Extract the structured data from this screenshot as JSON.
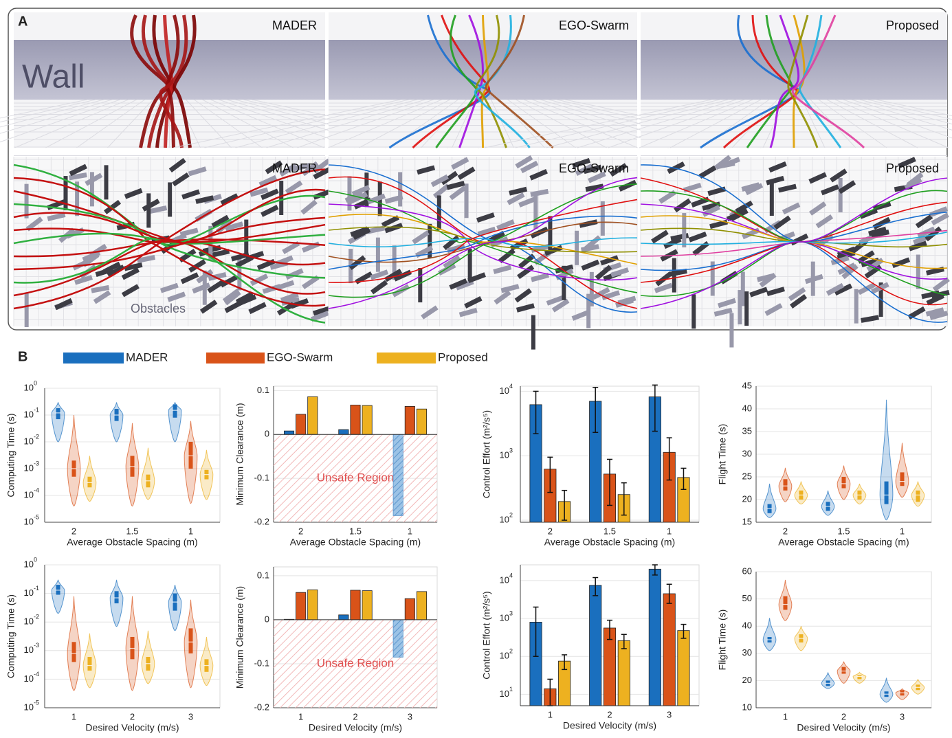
{
  "panel_a": {
    "label": "A",
    "top": [
      "MADER",
      "EGO-Swarm",
      "Proposed"
    ],
    "bottom": [
      "MADER",
      "EGO-Swarm",
      "Proposed"
    ],
    "wall": "Wall",
    "obstacles": "Obstacles"
  },
  "panel_b": {
    "label": "B"
  },
  "legend": [
    {
      "name": "MADER",
      "color": "#1a6fbe"
    },
    {
      "name": "EGO-Swarm",
      "color": "#d95319"
    },
    {
      "name": "Proposed",
      "color": "#edb120"
    }
  ],
  "chart_data": [
    {
      "type": "violin",
      "log": true,
      "ylabel": "Computing Time (s)",
      "xlabel": "Average Obstacle Spacing (m)",
      "categories": [
        "2",
        "1.5",
        "1"
      ],
      "ylim": [
        1e-05,
        1
      ],
      "yticks": [
        {
          "value": 1,
          "label": "10",
          "exponent": "0"
        },
        {
          "value": 0.1,
          "label": "10",
          "exponent": "-1"
        },
        {
          "value": 0.01,
          "label": "10",
          "exponent": "-2"
        },
        {
          "value": 0.001,
          "label": "10",
          "exponent": "-3"
        },
        {
          "value": 0.0001,
          "label": "10",
          "exponent": "-4"
        },
        {
          "value": 1e-05,
          "label": "10",
          "exponent": "-5"
        }
      ],
      "series": [
        {
          "min": [
            0.01,
            0.01,
            0.01
          ],
          "q1": [
            0.07,
            0.06,
            0.08
          ],
          "median": [
            0.12,
            0.1,
            0.15
          ],
          "q3": [
            0.18,
            0.17,
            0.25
          ],
          "max": [
            0.3,
            0.3,
            0.3
          ]
        },
        {
          "min": [
            4e-05,
            4e-05,
            5e-05
          ],
          "q1": [
            0.0005,
            0.0005,
            0.001
          ],
          "median": [
            0.001,
            0.0012,
            0.003
          ],
          "q3": [
            0.002,
            0.003,
            0.01
          ],
          "max": [
            0.1,
            0.05,
            0.06
          ]
        },
        {
          "min": [
            6e-05,
            7e-05,
            7e-05
          ],
          "q1": [
            0.0002,
            0.0002,
            0.0004
          ],
          "median": [
            0.0003,
            0.00035,
            0.0006
          ],
          "q3": [
            0.0005,
            0.0006,
            0.0009
          ],
          "max": [
            0.003,
            0.006,
            0.005
          ]
        }
      ]
    },
    {
      "type": "bar",
      "log": false,
      "ylabel": "Minimum Clearance (m)",
      "xlabel": "Average Obstacle Spacing (m)",
      "categories": [
        "2",
        "1.5",
        "1"
      ],
      "region_label": "Unsafe Region",
      "ylim": [
        -0.2,
        0.11
      ],
      "yticks": [
        -0.2,
        -0.1,
        0,
        0.1
      ],
      "series": [
        {
          "values": [
            0.008,
            0.011,
            -0.185
          ]
        },
        {
          "values": [
            0.046,
            0.067,
            0.064
          ]
        },
        {
          "values": [
            0.086,
            0.066,
            0.058
          ]
        }
      ]
    },
    {
      "type": "bar",
      "log": true,
      "ylabel": "Control Effort (m²/s⁵)",
      "xlabel": "Average Obstacle Spacing (m)",
      "categories": [
        "2",
        "1.5",
        "1"
      ],
      "ylim": [
        93,
        12000
      ],
      "yticks": [
        {
          "value": 100,
          "label": "10",
          "exponent": "2"
        },
        {
          "value": 1000,
          "label": "10",
          "exponent": "3"
        },
        {
          "value": 10000,
          "label": "10",
          "exponent": "4"
        }
      ],
      "series": [
        {
          "values": [
            6200,
            7000,
            8200
          ],
          "lower": [
            2200,
            2300,
            2400
          ],
          "upper": [
            10000,
            11500,
            12500
          ]
        },
        {
          "values": [
            620,
            520,
            1130
          ],
          "lower": [
            270,
            170,
            420
          ],
          "upper": [
            950,
            880,
            1900
          ]
        },
        {
          "values": [
            195,
            250,
            460
          ],
          "lower": [
            100,
            120,
            300
          ],
          "upper": [
            290,
            380,
            640
          ]
        }
      ]
    },
    {
      "type": "violin",
      "log": false,
      "ylabel": "Flight Time (s)",
      "xlabel": "Average Obstacle Spacing (m)",
      "categories": [
        "2",
        "1.5",
        "1"
      ],
      "ylim": [
        15,
        45
      ],
      "yticks": [
        15,
        20,
        25,
        30,
        35,
        40,
        45
      ],
      "series": [
        {
          "min": [
            16,
            16.5,
            15.5
          ],
          "q1": [
            17,
            17.5,
            19
          ],
          "median": [
            18,
            18.5,
            21
          ],
          "q3": [
            19,
            19.5,
            24
          ],
          "max": [
            23.5,
            22,
            42
          ]
        },
        {
          "min": [
            19.5,
            20,
            20.5
          ],
          "q1": [
            22,
            22.5,
            23
          ],
          "median": [
            23,
            23.5,
            24
          ],
          "q3": [
            24.5,
            25,
            26
          ],
          "max": [
            27,
            27.5,
            32.5
          ]
        },
        {
          "min": [
            19,
            19,
            18.5
          ],
          "q1": [
            20,
            20,
            19.5
          ],
          "median": [
            21,
            21,
            21
          ],
          "q3": [
            22,
            22,
            22
          ],
          "max": [
            24,
            23.5,
            24
          ]
        }
      ]
    },
    {
      "type": "violin",
      "log": true,
      "ylabel": "Computing Time (s)",
      "xlabel": "Desired Velocity (m/s)",
      "categories": [
        "1",
        "2",
        "3"
      ],
      "ylim": [
        1e-05,
        1
      ],
      "yticks": [
        {
          "value": 1,
          "label": "10",
          "exponent": "0"
        },
        {
          "value": 0.1,
          "label": "10",
          "exponent": "-1"
        },
        {
          "value": 0.01,
          "label": "10",
          "exponent": "-2"
        },
        {
          "value": 0.001,
          "label": "10",
          "exponent": "-3"
        },
        {
          "value": 0.0001,
          "label": "10",
          "exponent": "-4"
        },
        {
          "value": 1e-05,
          "label": "10",
          "exponent": "-5"
        }
      ],
      "series": [
        {
          "min": [
            0.02,
            0.007,
            0.005
          ],
          "q1": [
            0.09,
            0.045,
            0.025
          ],
          "median": [
            0.13,
            0.07,
            0.05
          ],
          "q3": [
            0.2,
            0.12,
            0.1
          ],
          "max": [
            0.3,
            0.3,
            0.2
          ]
        },
        {
          "min": [
            4e-05,
            4e-05,
            5e-05
          ],
          "q1": [
            0.0004,
            0.0005,
            0.0008
          ],
          "median": [
            0.0008,
            0.0012,
            0.002
          ],
          "q3": [
            0.002,
            0.003,
            0.006
          ],
          "max": [
            0.08,
            0.08,
            0.06
          ]
        },
        {
          "min": [
            5e-05,
            7e-05,
            6e-05
          ],
          "q1": [
            0.0002,
            0.0002,
            0.00018
          ],
          "median": [
            0.0003,
            0.00035,
            0.0003
          ],
          "q3": [
            0.0006,
            0.0006,
            0.0005
          ],
          "max": [
            0.004,
            0.005,
            0.003
          ]
        }
      ]
    },
    {
      "type": "bar",
      "log": false,
      "ylabel": "Minimum Clearance (m)",
      "xlabel": "Desired Velocity (m/s)",
      "categories": [
        "1",
        "2",
        "3"
      ],
      "region_label": "Unsafe Region",
      "ylim": [
        -0.2,
        0.12
      ],
      "yticks": [
        -0.2,
        -0.1,
        0,
        0.1
      ],
      "series": [
        {
          "values": [
            0.001,
            0.011,
            -0.085
          ]
        },
        {
          "values": [
            0.062,
            0.067,
            0.048
          ]
        },
        {
          "values": [
            0.068,
            0.066,
            0.064
          ]
        }
      ]
    },
    {
      "type": "bar",
      "log": true,
      "ylabel": "Control Effort (m²/s⁵)",
      "xlabel": "Desired Velocity (m/s)",
      "categories": [
        "1",
        "2",
        "3"
      ],
      "ylim": [
        5,
        26000
      ],
      "yticks": [
        {
          "value": 10,
          "label": "10",
          "exponent": "1"
        },
        {
          "value": 100,
          "label": "10",
          "exponent": "2"
        },
        {
          "value": 1000,
          "label": "10",
          "exponent": "3"
        },
        {
          "value": 10000,
          "label": "10",
          "exponent": "4"
        }
      ],
      "series": [
        {
          "values": [
            800,
            7500,
            20000
          ],
          "lower": [
            100,
            4000,
            14000
          ],
          "upper": [
            2000,
            12000,
            26000
          ]
        },
        {
          "values": [
            14,
            560,
            4500
          ],
          "lower": [
            5,
            280,
            2500
          ],
          "upper": [
            25,
            900,
            8000
          ]
        },
        {
          "values": [
            75,
            260,
            480
          ],
          "lower": [
            45,
            160,
            300
          ],
          "upper": [
            110,
            380,
            700
          ]
        }
      ]
    },
    {
      "type": "violin",
      "log": false,
      "ylabel": "Flight Time (s)",
      "xlabel": "Desired Velocity (m/s)",
      "categories": [
        "1",
        "2",
        "3"
      ],
      "ylim": [
        10,
        60
      ],
      "yticks": [
        10,
        20,
        30,
        40,
        50,
        60
      ],
      "series": [
        {
          "min": [
            31,
            17,
            12
          ],
          "q1": [
            34,
            18,
            14
          ],
          "median": [
            35,
            19,
            15
          ],
          "q3": [
            36,
            20,
            16
          ],
          "max": [
            43,
            23,
            21
          ]
        },
        {
          "min": [
            42,
            19,
            13
          ],
          "q1": [
            46,
            22.5,
            14.5
          ],
          "median": [
            48,
            23.5,
            15.5
          ],
          "q3": [
            51,
            25,
            16.5
          ],
          "max": [
            57,
            27,
            17
          ]
        },
        {
          "min": [
            31,
            19,
            15
          ],
          "q1": [
            34,
            20.5,
            16.5
          ],
          "median": [
            35.5,
            21.5,
            17.5
          ],
          "q3": [
            37,
            22,
            18.5
          ],
          "max": [
            40,
            23,
            20.5
          ]
        }
      ]
    }
  ]
}
